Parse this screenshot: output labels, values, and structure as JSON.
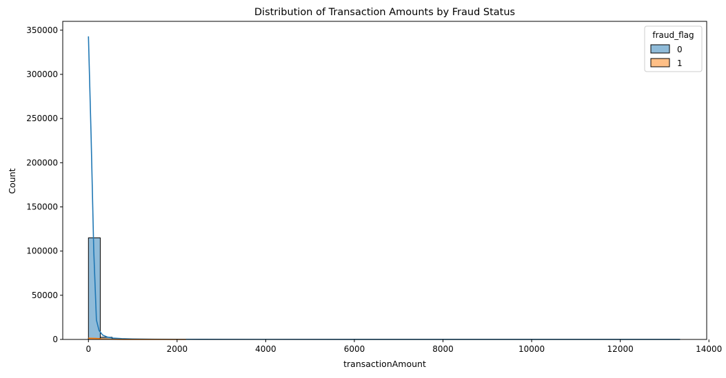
{
  "chart_data": {
    "type": "bar",
    "title": "Distribution of Transaction Amounts by Fraud Status",
    "xlabel": "transactionAmount",
    "ylabel": "Count",
    "xlim": [
      -580,
      13950
    ],
    "ylim": [
      0,
      360000
    ],
    "xticks": [
      0,
      2000,
      4000,
      6000,
      8000,
      10000,
      12000,
      14000
    ],
    "yticks": [
      0,
      50000,
      100000,
      150000,
      200000,
      250000,
      300000,
      350000
    ],
    "grid": false,
    "legend": {
      "title": "fraud_flag",
      "placement": "top-right",
      "entries": [
        {
          "label": "0",
          "color": "#1f77b4"
        },
        {
          "label": "1",
          "color": "#ff7f0e"
        }
      ]
    },
    "bin_width": 267,
    "series": [
      {
        "name": "0",
        "color": "#1f77b4",
        "bins": [
          {
            "x0": 0,
            "x1": 267,
            "count": 115000
          },
          {
            "x0": 267,
            "x1": 534,
            "count": 2500
          },
          {
            "x0": 534,
            "x1": 801,
            "count": 600
          },
          {
            "x0": 801,
            "x1": 1068,
            "count": 250
          },
          {
            "x0": 1068,
            "x1": 1335,
            "count": 120
          },
          {
            "x0": 1335,
            "x1": 1602,
            "count": 60
          },
          {
            "x0": 1602,
            "x1": 1869,
            "count": 30
          }
        ],
        "kde": [
          [
            0,
            343000
          ],
          [
            60,
            230000
          ],
          [
            120,
            100000
          ],
          [
            180,
            22000
          ],
          [
            240,
            10000
          ],
          [
            320,
            5000
          ],
          [
            420,
            2800
          ],
          [
            560,
            1500
          ],
          [
            750,
            900
          ],
          [
            1000,
            500
          ],
          [
            1500,
            250
          ],
          [
            2500,
            150
          ],
          [
            4000,
            100
          ],
          [
            6000,
            80
          ],
          [
            8000,
            80
          ],
          [
            10000,
            80
          ],
          [
            12000,
            80
          ],
          [
            13350,
            80
          ]
        ]
      },
      {
        "name": "1",
        "color": "#ff7f0e",
        "bins": [
          {
            "x0": 0,
            "x1": 267,
            "count": 1200
          },
          {
            "x0": 267,
            "x1": 534,
            "count": 250
          },
          {
            "x0": 534,
            "x1": 801,
            "count": 60
          }
        ],
        "kde": [
          [
            0,
            1400
          ],
          [
            150,
            1200
          ],
          [
            300,
            600
          ],
          [
            500,
            250
          ],
          [
            800,
            80
          ],
          [
            1200,
            30
          ],
          [
            2000,
            10
          ],
          [
            2200,
            0
          ]
        ]
      }
    ]
  }
}
